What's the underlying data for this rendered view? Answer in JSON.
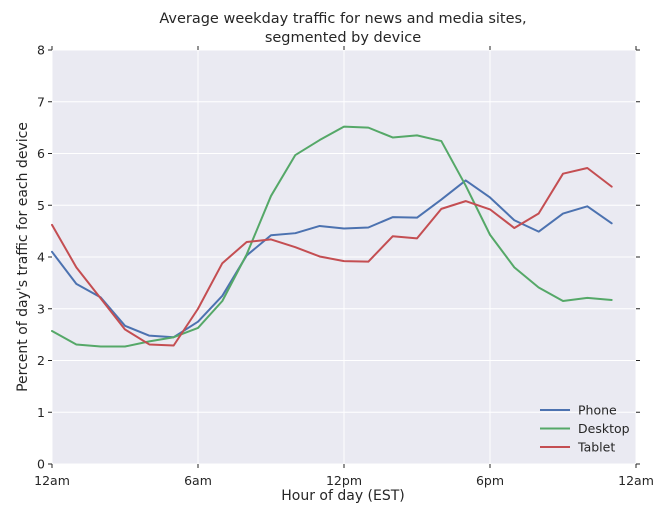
{
  "chart_data": {
    "type": "line",
    "title": [
      "Average weekday traffic for news and media sites,",
      "segmented by device"
    ],
    "xlabel": "Hour of day (EST)",
    "ylabel": "Percent of day's traffic for each device",
    "xlim": [
      0,
      24
    ],
    "ylim": [
      0,
      8
    ],
    "xticks": [
      {
        "value": 0,
        "label": "12am"
      },
      {
        "value": 6,
        "label": "6am"
      },
      {
        "value": 12,
        "label": "12pm"
      },
      {
        "value": 18,
        "label": "6pm"
      },
      {
        "value": 24,
        "label": "12am"
      }
    ],
    "yticks": [
      0,
      1,
      2,
      3,
      4,
      5,
      6,
      7,
      8
    ],
    "grid": true,
    "legend_position": "bottom-right",
    "x": [
      0,
      1,
      2,
      3,
      4,
      5,
      6,
      7,
      8,
      9,
      10,
      11,
      12,
      13,
      14,
      15,
      16,
      17,
      18,
      19,
      20,
      21,
      22,
      23
    ],
    "series": [
      {
        "name": "Phone",
        "color": "#4c72b0",
        "values": [
          4.1,
          3.48,
          3.22,
          2.67,
          2.48,
          2.45,
          2.75,
          3.25,
          4.03,
          4.42,
          4.46,
          4.6,
          4.55,
          4.57,
          4.77,
          4.76,
          5.11,
          5.48,
          5.15,
          4.71,
          4.49,
          4.84,
          4.98,
          4.65
        ]
      },
      {
        "name": "Desktop",
        "color": "#55a868",
        "values": [
          2.57,
          2.31,
          2.27,
          2.27,
          2.37,
          2.45,
          2.63,
          3.15,
          4.05,
          5.18,
          5.97,
          6.26,
          6.52,
          6.5,
          6.31,
          6.35,
          6.24,
          5.38,
          4.43,
          3.8,
          3.41,
          3.15,
          3.21,
          3.17
        ]
      },
      {
        "name": "Tablet",
        "color": "#c44e52",
        "values": [
          4.62,
          3.8,
          3.2,
          2.6,
          2.31,
          2.29,
          3.0,
          3.88,
          4.29,
          4.34,
          4.19,
          4.01,
          3.92,
          3.91,
          4.4,
          4.36,
          4.93,
          5.08,
          4.92,
          4.56,
          4.84,
          5.61,
          5.72,
          5.36
        ]
      }
    ]
  }
}
